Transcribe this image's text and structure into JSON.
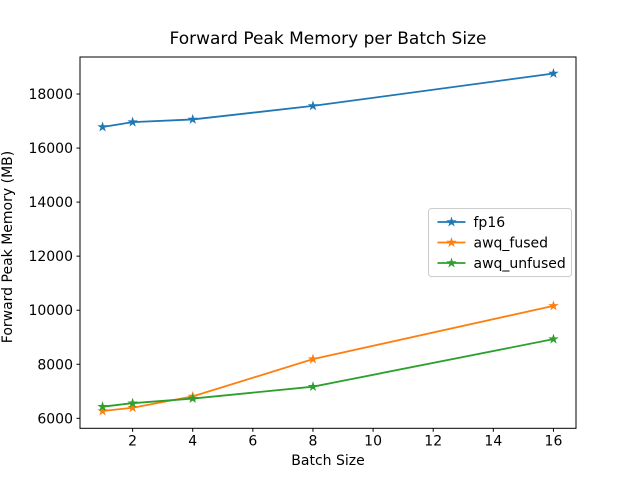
{
  "title": "Forward Peak Memory per Batch Size",
  "axes": {
    "xlabel": "Batch Size",
    "ylabel": "Forward Peak Memory (MB)",
    "xticks": [
      2,
      4,
      6,
      8,
      10,
      12,
      14,
      16
    ],
    "yticks": [
      6000,
      8000,
      10000,
      12000,
      14000,
      16000,
      18000
    ]
  },
  "legend": {
    "entries": [
      "fp16",
      "awq_fused",
      "awq_unfused"
    ]
  },
  "chart_data": {
    "type": "line",
    "title": "Forward Peak Memory per Batch Size",
    "xlabel": "Batch Size",
    "ylabel": "Forward Peak Memory (MB)",
    "x": [
      1,
      2,
      4,
      8,
      16
    ],
    "series": [
      {
        "name": "fp16",
        "color": "#1f77b4",
        "values": [
          16780,
          16960,
          17060,
          17560,
          18760
        ]
      },
      {
        "name": "awq_fused",
        "color": "#ff7f0e",
        "values": [
          6270,
          6390,
          6810,
          8190,
          10160
        ]
      },
      {
        "name": "awq_unfused",
        "color": "#2ca02c",
        "values": [
          6430,
          6560,
          6730,
          7170,
          8930
        ]
      }
    ],
    "marker": "star",
    "grid": false,
    "legend_position": "center right",
    "xlim": [
      0.25,
      16.75
    ],
    "ylim": [
      5630,
      19370
    ],
    "frame_color": "#000000",
    "legend_border_color": "#cccccc"
  }
}
